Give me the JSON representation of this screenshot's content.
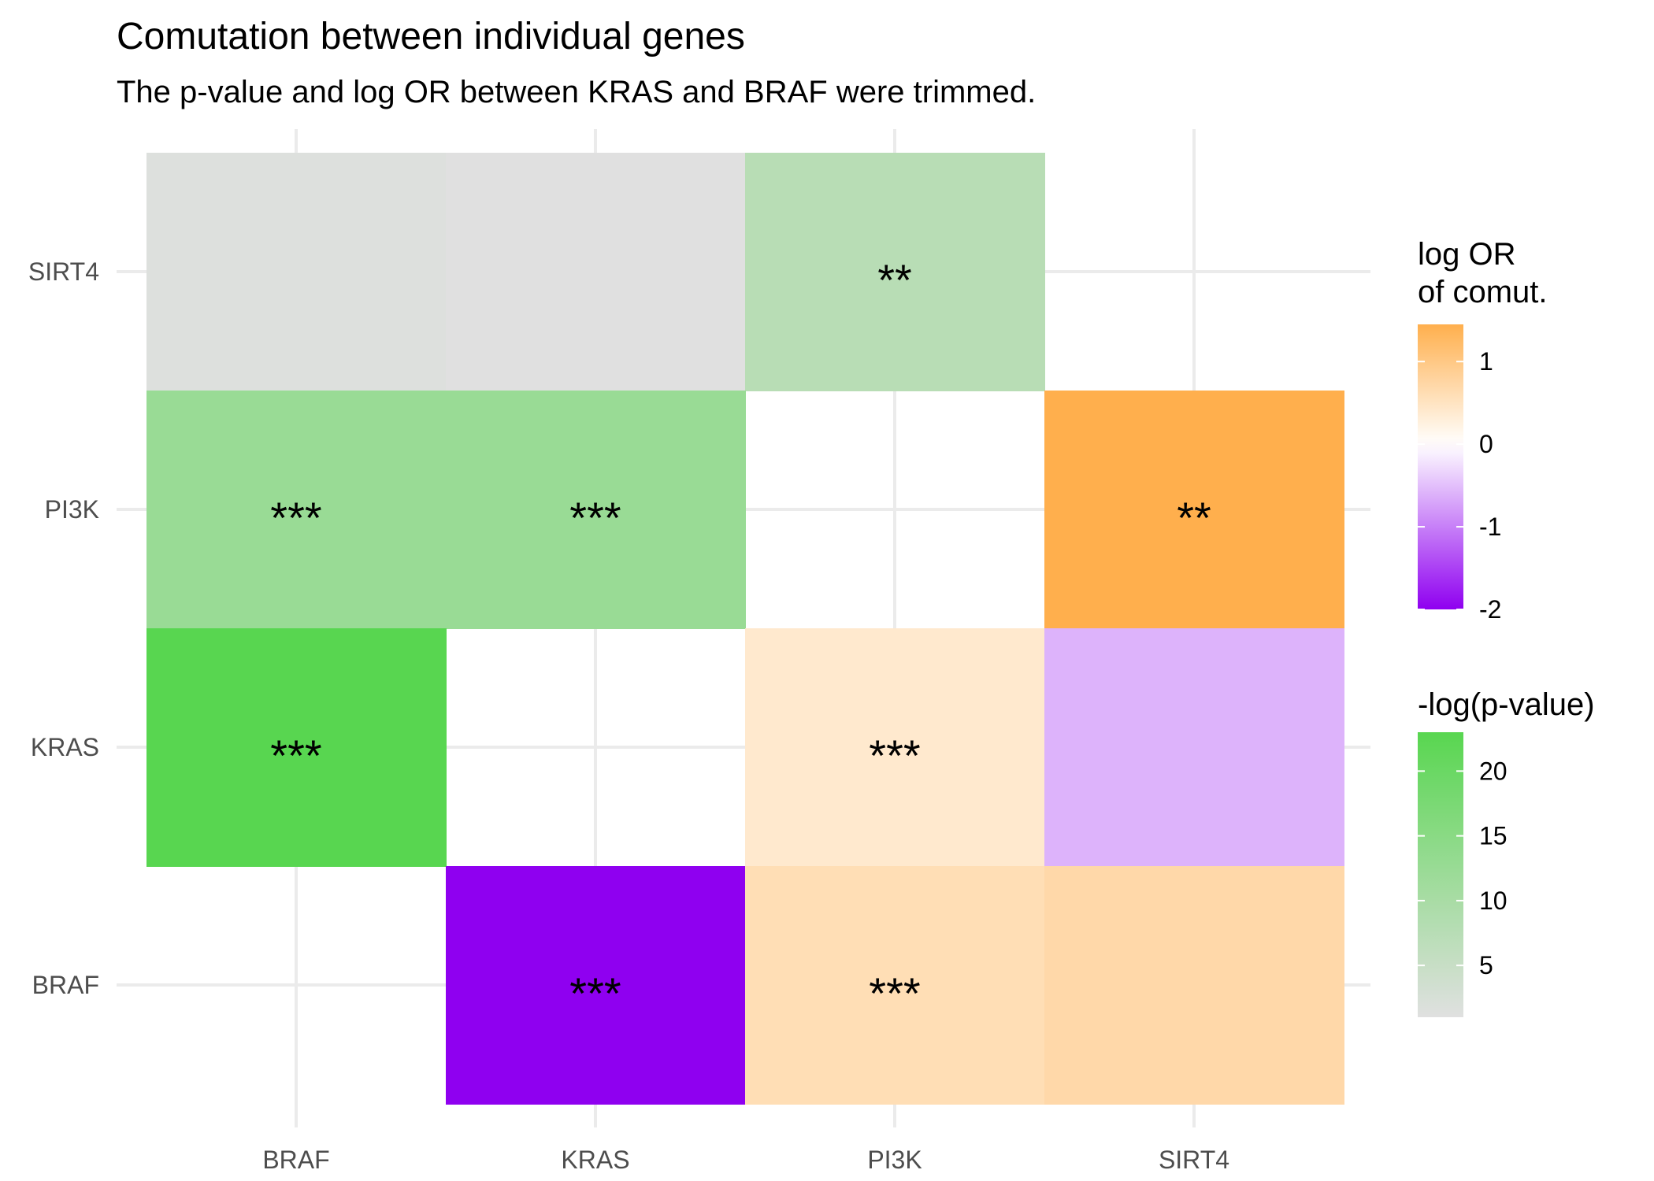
{
  "chart_data": {
    "type": "heatmap",
    "title": "Comutation between individual genes",
    "subtitle": "The p-value and log OR between KRAS and BRAF were trimmed.",
    "x_categories": [
      "BRAF",
      "KRAS",
      "PI3K",
      "SIRT4"
    ],
    "y_categories": [
      "BRAF",
      "KRAS",
      "PI3K",
      "SIRT4"
    ],
    "upper_triangle_fill": "-log(p-value)",
    "lower_triangle_fill": "log OR of comut.",
    "cells": [
      {
        "x": "BRAF",
        "y": "SIRT4",
        "value": 1.5,
        "scale": "neglogp",
        "label": ""
      },
      {
        "x": "KRAS",
        "y": "SIRT4",
        "value": 1.0,
        "scale": "neglogp",
        "label": ""
      },
      {
        "x": "PI3K",
        "y": "SIRT4",
        "value": 7.5,
        "scale": "neglogp",
        "label": "**"
      },
      {
        "x": "BRAF",
        "y": "PI3K",
        "value": 12.5,
        "scale": "neglogp",
        "label": "***"
      },
      {
        "x": "KRAS",
        "y": "PI3K",
        "value": 12.5,
        "scale": "neglogp",
        "label": "***"
      },
      {
        "x": "SIRT4",
        "y": "PI3K",
        "value": 1.45,
        "scale": "logor",
        "label": "**"
      },
      {
        "x": "BRAF",
        "y": "KRAS",
        "value": 23,
        "scale": "neglogp",
        "label": "***"
      },
      {
        "x": "PI3K",
        "y": "KRAS",
        "value": 0.4,
        "scale": "logor",
        "label": "***"
      },
      {
        "x": "SIRT4",
        "y": "KRAS",
        "value": -0.6,
        "scale": "logor",
        "label": ""
      },
      {
        "x": "KRAS",
        "y": "BRAF",
        "value": -2,
        "scale": "logor",
        "label": "***"
      },
      {
        "x": "PI3K",
        "y": "BRAF",
        "value": 0.6,
        "scale": "logor",
        "label": "***"
      },
      {
        "x": "SIRT4",
        "y": "BRAF",
        "value": 0.7,
        "scale": "logor",
        "label": ""
      }
    ],
    "legends": {
      "logor": {
        "title_lines": [
          "log OR",
          "of comut."
        ],
        "range": [
          -2,
          1.45
        ],
        "ticks": [
          1,
          0,
          -1,
          -2
        ],
        "tick_labels": [
          "1",
          "0",
          "-1",
          "-2"
        ],
        "colors": {
          "low": "#8f00f0",
          "mid": "#ffffff",
          "high": "#ffaf4d"
        }
      },
      "neglogp": {
        "title_lines": [
          "-log(p-value)"
        ],
        "range": [
          1,
          23
        ],
        "ticks": [
          20,
          15,
          10,
          5
        ],
        "tick_labels": [
          "20",
          "15",
          "10",
          "5"
        ],
        "colors": {
          "low": "#e0e0e0",
          "high": "#58d650"
        }
      }
    },
    "grid": true,
    "legend_position": "right"
  }
}
